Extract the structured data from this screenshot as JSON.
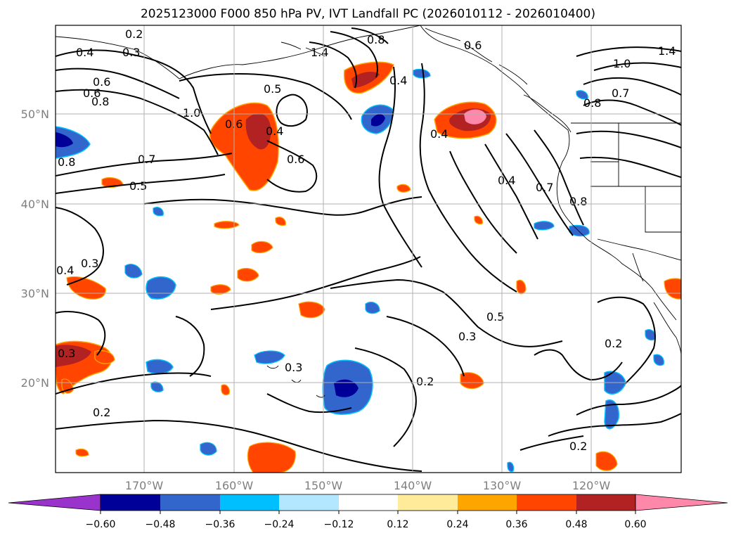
{
  "title": "2025123000 F000 850 hPa PV, IVT Landfall PC (2026010112 - 2026010400)",
  "lat_labels": [
    "50°N",
    "40°N",
    "30°N",
    "20°N"
  ],
  "lon_labels": [
    "170°W",
    "160°W",
    "150°W",
    "140°W",
    "130°W",
    "120°W"
  ],
  "contour_labels": [
    "0.2",
    "0.3",
    "0.4",
    "0.6",
    "0.6",
    "0.8",
    "1.0",
    "0.7",
    "0.5",
    "0.8",
    "0.3",
    "0.4",
    "1.4",
    "0.5",
    "0.6",
    "0.4",
    "0.6",
    "0.4",
    "0.4",
    "0.7",
    "0.8",
    "0.4",
    "0.5",
    "0.3",
    "0.2",
    "0.3",
    "0.2",
    "0.2",
    "0.2",
    "0.3",
    "1.4",
    "1.0",
    "0.7",
    "0.8",
    "0.6",
    "0.8"
  ],
  "colorbar": {
    "colors": [
      "#9933cc",
      "#000099",
      "#3366cc",
      "#00bfff",
      "#b3e6ff",
      "#ffffff",
      "#ffeb99",
      "#ffa500",
      "#ff4500",
      "#b22222",
      "#ff88aa"
    ],
    "ticks": [
      "−0.60",
      "−0.48",
      "−0.36",
      "−0.24",
      "−0.12",
      "0.12",
      "0.24",
      "0.36",
      "0.48",
      "0.60"
    ]
  }
}
